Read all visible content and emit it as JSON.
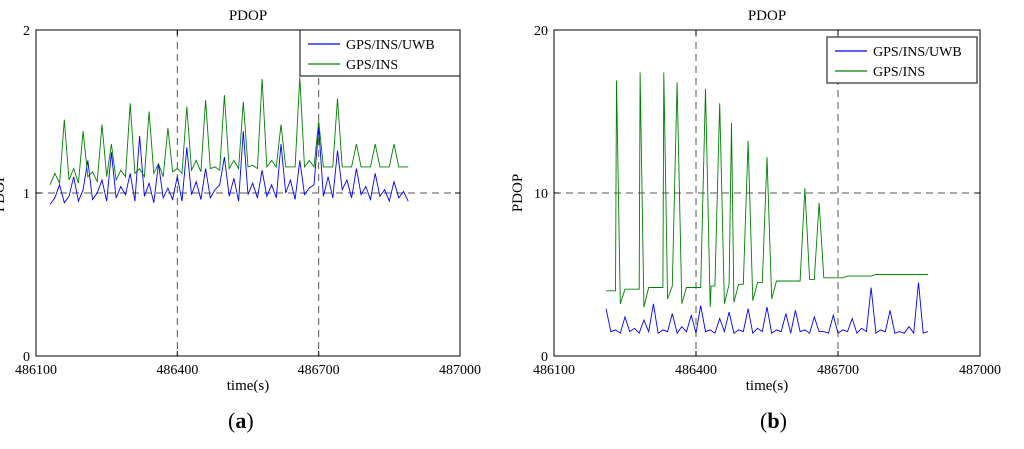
{
  "chart_data": [
    {
      "type": "line",
      "panel_label": "a",
      "title": "PDOP",
      "xlabel": "time(s)",
      "ylabel": "PDOP",
      "xlim": [
        486100,
        487000
      ],
      "ylim": [
        0,
        2
      ],
      "xticks": [
        486100,
        486400,
        486700,
        487000
      ],
      "yticks": [
        0,
        1,
        2
      ],
      "xtick_labels": [
        "486100",
        "486400",
        "486700",
        "487000"
      ],
      "ytick_labels": [
        "0",
        "1",
        "2"
      ],
      "grid": "dashed",
      "legend_position": "top-right",
      "series": [
        {
          "name": "GPS/INS/UWB",
          "color": "#0000ff",
          "x": [
            486130,
            486140,
            486150,
            486160,
            486170,
            486180,
            486190,
            486200,
            486210,
            486220,
            486230,
            486240,
            486250,
            486260,
            486270,
            486280,
            486290,
            486300,
            486310,
            486320,
            486330,
            486340,
            486350,
            486360,
            486370,
            486380,
            486390,
            486400,
            486410,
            486420,
            486430,
            486440,
            486450,
            486460,
            486470,
            486480,
            486490,
            486500,
            486510,
            486520,
            486530,
            486540,
            486550,
            486560,
            486570,
            486580,
            486590,
            486600,
            486610,
            486620,
            486630,
            486640,
            486650,
            486660,
            486670,
            486680,
            486690,
            486700,
            486710,
            486720,
            486730,
            486740,
            486750,
            486760,
            486770,
            486780,
            486790,
            486800,
            486810,
            486820,
            486830,
            486840,
            486850,
            486860,
            486870,
            486880,
            486890
          ],
          "y": [
            0.93,
            0.97,
            1.05,
            0.94,
            0.98,
            1.1,
            0.95,
            1.02,
            1.2,
            0.96,
            1.0,
            1.08,
            0.95,
            1.25,
            0.97,
            1.04,
            0.99,
            1.12,
            0.95,
            1.35,
            0.98,
            1.06,
            0.94,
            1.18,
            0.97,
            1.03,
            0.96,
            1.1,
            0.95,
            1.28,
            0.99,
            1.07,
            0.96,
            1.15,
            0.97,
            1.02,
            1.05,
            1.22,
            0.98,
            1.09,
            0.95,
            1.38,
            0.99,
            1.06,
            0.97,
            1.14,
            0.98,
            1.05,
            0.97,
            1.3,
            1.0,
            1.08,
            0.96,
            1.2,
            0.99,
            1.03,
            1.05,
            1.4,
            0.98,
            1.1,
            0.97,
            1.26,
            1.02,
            1.08,
            0.97,
            1.15,
            0.99,
            1.04,
            0.96,
            1.12,
            0.98,
            1.02,
            0.95,
            1.07,
            0.97,
            1.01,
            0.95
          ]
        },
        {
          "name": "GPS/INS",
          "color": "#008000",
          "x": [
            486130,
            486140,
            486150,
            486160,
            486170,
            486180,
            486190,
            486200,
            486210,
            486220,
            486230,
            486240,
            486250,
            486260,
            486270,
            486280,
            486290,
            486300,
            486310,
            486320,
            486330,
            486340,
            486350,
            486360,
            486370,
            486380,
            486390,
            486400,
            486410,
            486420,
            486430,
            486440,
            486450,
            486460,
            486470,
            486480,
            486490,
            486500,
            486510,
            486520,
            486530,
            486540,
            486550,
            486560,
            486570,
            486580,
            486590,
            486600,
            486610,
            486620,
            486630,
            486640,
            486650,
            486660,
            486670,
            486680,
            486690,
            486700,
            486710,
            486720,
            486730,
            486740,
            486750,
            486760,
            486770,
            486780,
            486790,
            486800,
            486810,
            486820,
            486830,
            486840,
            486850,
            486860,
            486870,
            486880,
            486890
          ],
          "y": [
            1.05,
            1.12,
            1.06,
            1.45,
            1.08,
            1.15,
            1.06,
            1.38,
            1.1,
            1.13,
            1.07,
            1.42,
            1.1,
            1.3,
            1.08,
            1.14,
            1.1,
            1.55,
            1.12,
            1.15,
            1.1,
            1.5,
            1.12,
            1.18,
            1.1,
            1.4,
            1.13,
            1.15,
            1.12,
            1.53,
            1.14,
            1.2,
            1.13,
            1.57,
            1.15,
            1.16,
            1.14,
            1.6,
            1.15,
            1.2,
            1.15,
            1.56,
            1.16,
            1.17,
            1.15,
            1.7,
            1.16,
            1.2,
            1.16,
            1.42,
            1.16,
            1.16,
            1.16,
            1.71,
            1.16,
            1.2,
            1.16,
            1.44,
            1.16,
            1.16,
            1.16,
            1.58,
            1.16,
            1.16,
            1.16,
            1.3,
            1.16,
            1.16,
            1.16,
            1.3,
            1.16,
            1.16,
            1.16,
            1.3,
            1.16,
            1.16,
            1.16
          ]
        }
      ]
    },
    {
      "type": "line",
      "panel_label": "b",
      "title": "PDOP",
      "xlabel": "time(s)",
      "ylabel": "PDOP",
      "xlim": [
        486100,
        487000
      ],
      "ylim": [
        0,
        20
      ],
      "xticks": [
        486100,
        486400,
        486700,
        487000
      ],
      "yticks": [
        0,
        10,
        20
      ],
      "xtick_labels": [
        "486100",
        "486400",
        "486700",
        "487000"
      ],
      "ytick_labels": [
        "0",
        "10",
        "20"
      ],
      "grid": "dashed",
      "legend_position": "top-right",
      "series": [
        {
          "name": "GPS/INS/UWB",
          "color": "#0000ff",
          "x": [
            486210,
            486220,
            486230,
            486240,
            486250,
            486260,
            486270,
            486280,
            486290,
            486300,
            486310,
            486320,
            486330,
            486340,
            486350,
            486360,
            486370,
            486380,
            486390,
            486400,
            486410,
            486420,
            486430,
            486440,
            486450,
            486460,
            486470,
            486480,
            486490,
            486500,
            486510,
            486520,
            486530,
            486540,
            486550,
            486560,
            486570,
            486580,
            486590,
            486600,
            486610,
            486620,
            486630,
            486640,
            486650,
            486660,
            486670,
            486680,
            486690,
            486700,
            486710,
            486720,
            486730,
            486740,
            486750,
            486760,
            486770,
            486780,
            486790,
            486800,
            486810,
            486820,
            486830,
            486840,
            486850,
            486860,
            486870,
            486880,
            486890
          ],
          "y": [
            2.9,
            1.5,
            1.6,
            1.4,
            2.4,
            1.5,
            1.7,
            1.4,
            2.2,
            1.5,
            3.2,
            1.4,
            1.6,
            1.5,
            2.6,
            1.4,
            1.8,
            1.5,
            2.5,
            1.4,
            3.1,
            1.5,
            1.6,
            1.4,
            2.3,
            1.5,
            2.7,
            1.4,
            1.6,
            1.5,
            2.9,
            1.4,
            1.7,
            1.5,
            3.0,
            1.4,
            1.6,
            1.5,
            2.6,
            1.4,
            2.8,
            1.5,
            1.6,
            1.4,
            2.4,
            1.5,
            1.5,
            1.4,
            2.5,
            1.4,
            1.6,
            1.5,
            2.3,
            1.4,
            1.7,
            1.5,
            4.2,
            1.4,
            1.6,
            1.5,
            2.8,
            1.4,
            1.5,
            1.4,
            1.8,
            1.4,
            4.5,
            1.4,
            1.5
          ]
        },
        {
          "name": "GPS/INS",
          "color": "#008000",
          "x": [
            486210,
            486220,
            486230,
            486232,
            486240,
            486250,
            486260,
            486270,
            486280,
            486282,
            486290,
            486300,
            486310,
            486330,
            486332,
            486340,
            486350,
            486360,
            486370,
            486380,
            486382,
            486390,
            486400,
            486410,
            486420,
            486430,
            486432,
            486440,
            486450,
            486460,
            486470,
            486475,
            486480,
            486490,
            486500,
            486510,
            486520,
            486530,
            486540,
            486550,
            486560,
            486570,
            486580,
            486590,
            486600,
            486610,
            486620,
            486630,
            486640,
            486650,
            486660,
            486670,
            486680,
            486690,
            486700,
            486710,
            486720,
            486730,
            486740,
            486750,
            486760,
            486770,
            486780,
            486790,
            486800,
            486810,
            486820,
            486830,
            486840,
            486850,
            486860,
            486870,
            486880,
            486890
          ],
          "y": [
            4.0,
            4.0,
            4.0,
            16.9,
            3.2,
            4.1,
            4.1,
            4.1,
            4.1,
            17.4,
            3.0,
            4.2,
            4.2,
            4.2,
            17.4,
            3.5,
            4.3,
            16.8,
            3.2,
            4.2,
            4.2,
            4.2,
            4.2,
            4.2,
            16.4,
            3.0,
            4.3,
            4.3,
            15.5,
            3.2,
            4.4,
            14.3,
            3.3,
            4.4,
            4.4,
            13.2,
            3.4,
            4.5,
            4.5,
            12.2,
            3.5,
            4.6,
            4.6,
            4.6,
            4.6,
            4.6,
            4.6,
            10.3,
            4.7,
            4.7,
            9.4,
            4.8,
            4.8,
            4.8,
            4.8,
            4.8,
            4.9,
            4.9,
            4.9,
            4.9,
            4.9,
            4.9,
            5.0,
            5.0,
            5.0,
            5.0,
            5.0,
            5.0,
            5.0,
            5.0,
            5.0,
            5.0,
            5.0,
            5.0
          ]
        }
      ]
    }
  ]
}
